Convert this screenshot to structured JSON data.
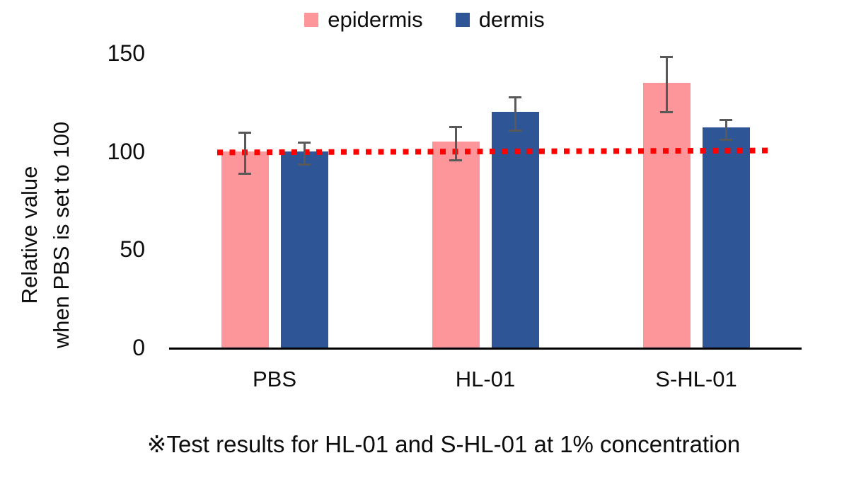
{
  "chart_data": {
    "type": "bar",
    "title": "",
    "categories": [
      "PBS",
      "HL-01",
      "S-HL-01"
    ],
    "series": [
      {
        "name": "epidermis",
        "color": "#FC969B",
        "values": [
          100,
          105,
          135
        ],
        "errors": [
          10,
          8,
          13.5
        ]
      },
      {
        "name": "dermis",
        "color": "#2E5596",
        "values": [
          100,
          120,
          112
        ],
        "errors": [
          5,
          8,
          4.5
        ]
      }
    ],
    "ylabel_lines": [
      "Relative value",
      "when PBS is set to 100"
    ],
    "yticks": [
      0,
      50,
      100,
      150
    ],
    "ylim": [
      0,
      150
    ],
    "grid": false,
    "legend_position": "top",
    "reference_line": {
      "value": 100,
      "color": "#FF0000",
      "style": "dotted"
    },
    "error_bar_color": "#595959",
    "axis_line_color": "#000000"
  },
  "caption": "※Test results for HL-01 and S-HL-01 at 1% concentration"
}
